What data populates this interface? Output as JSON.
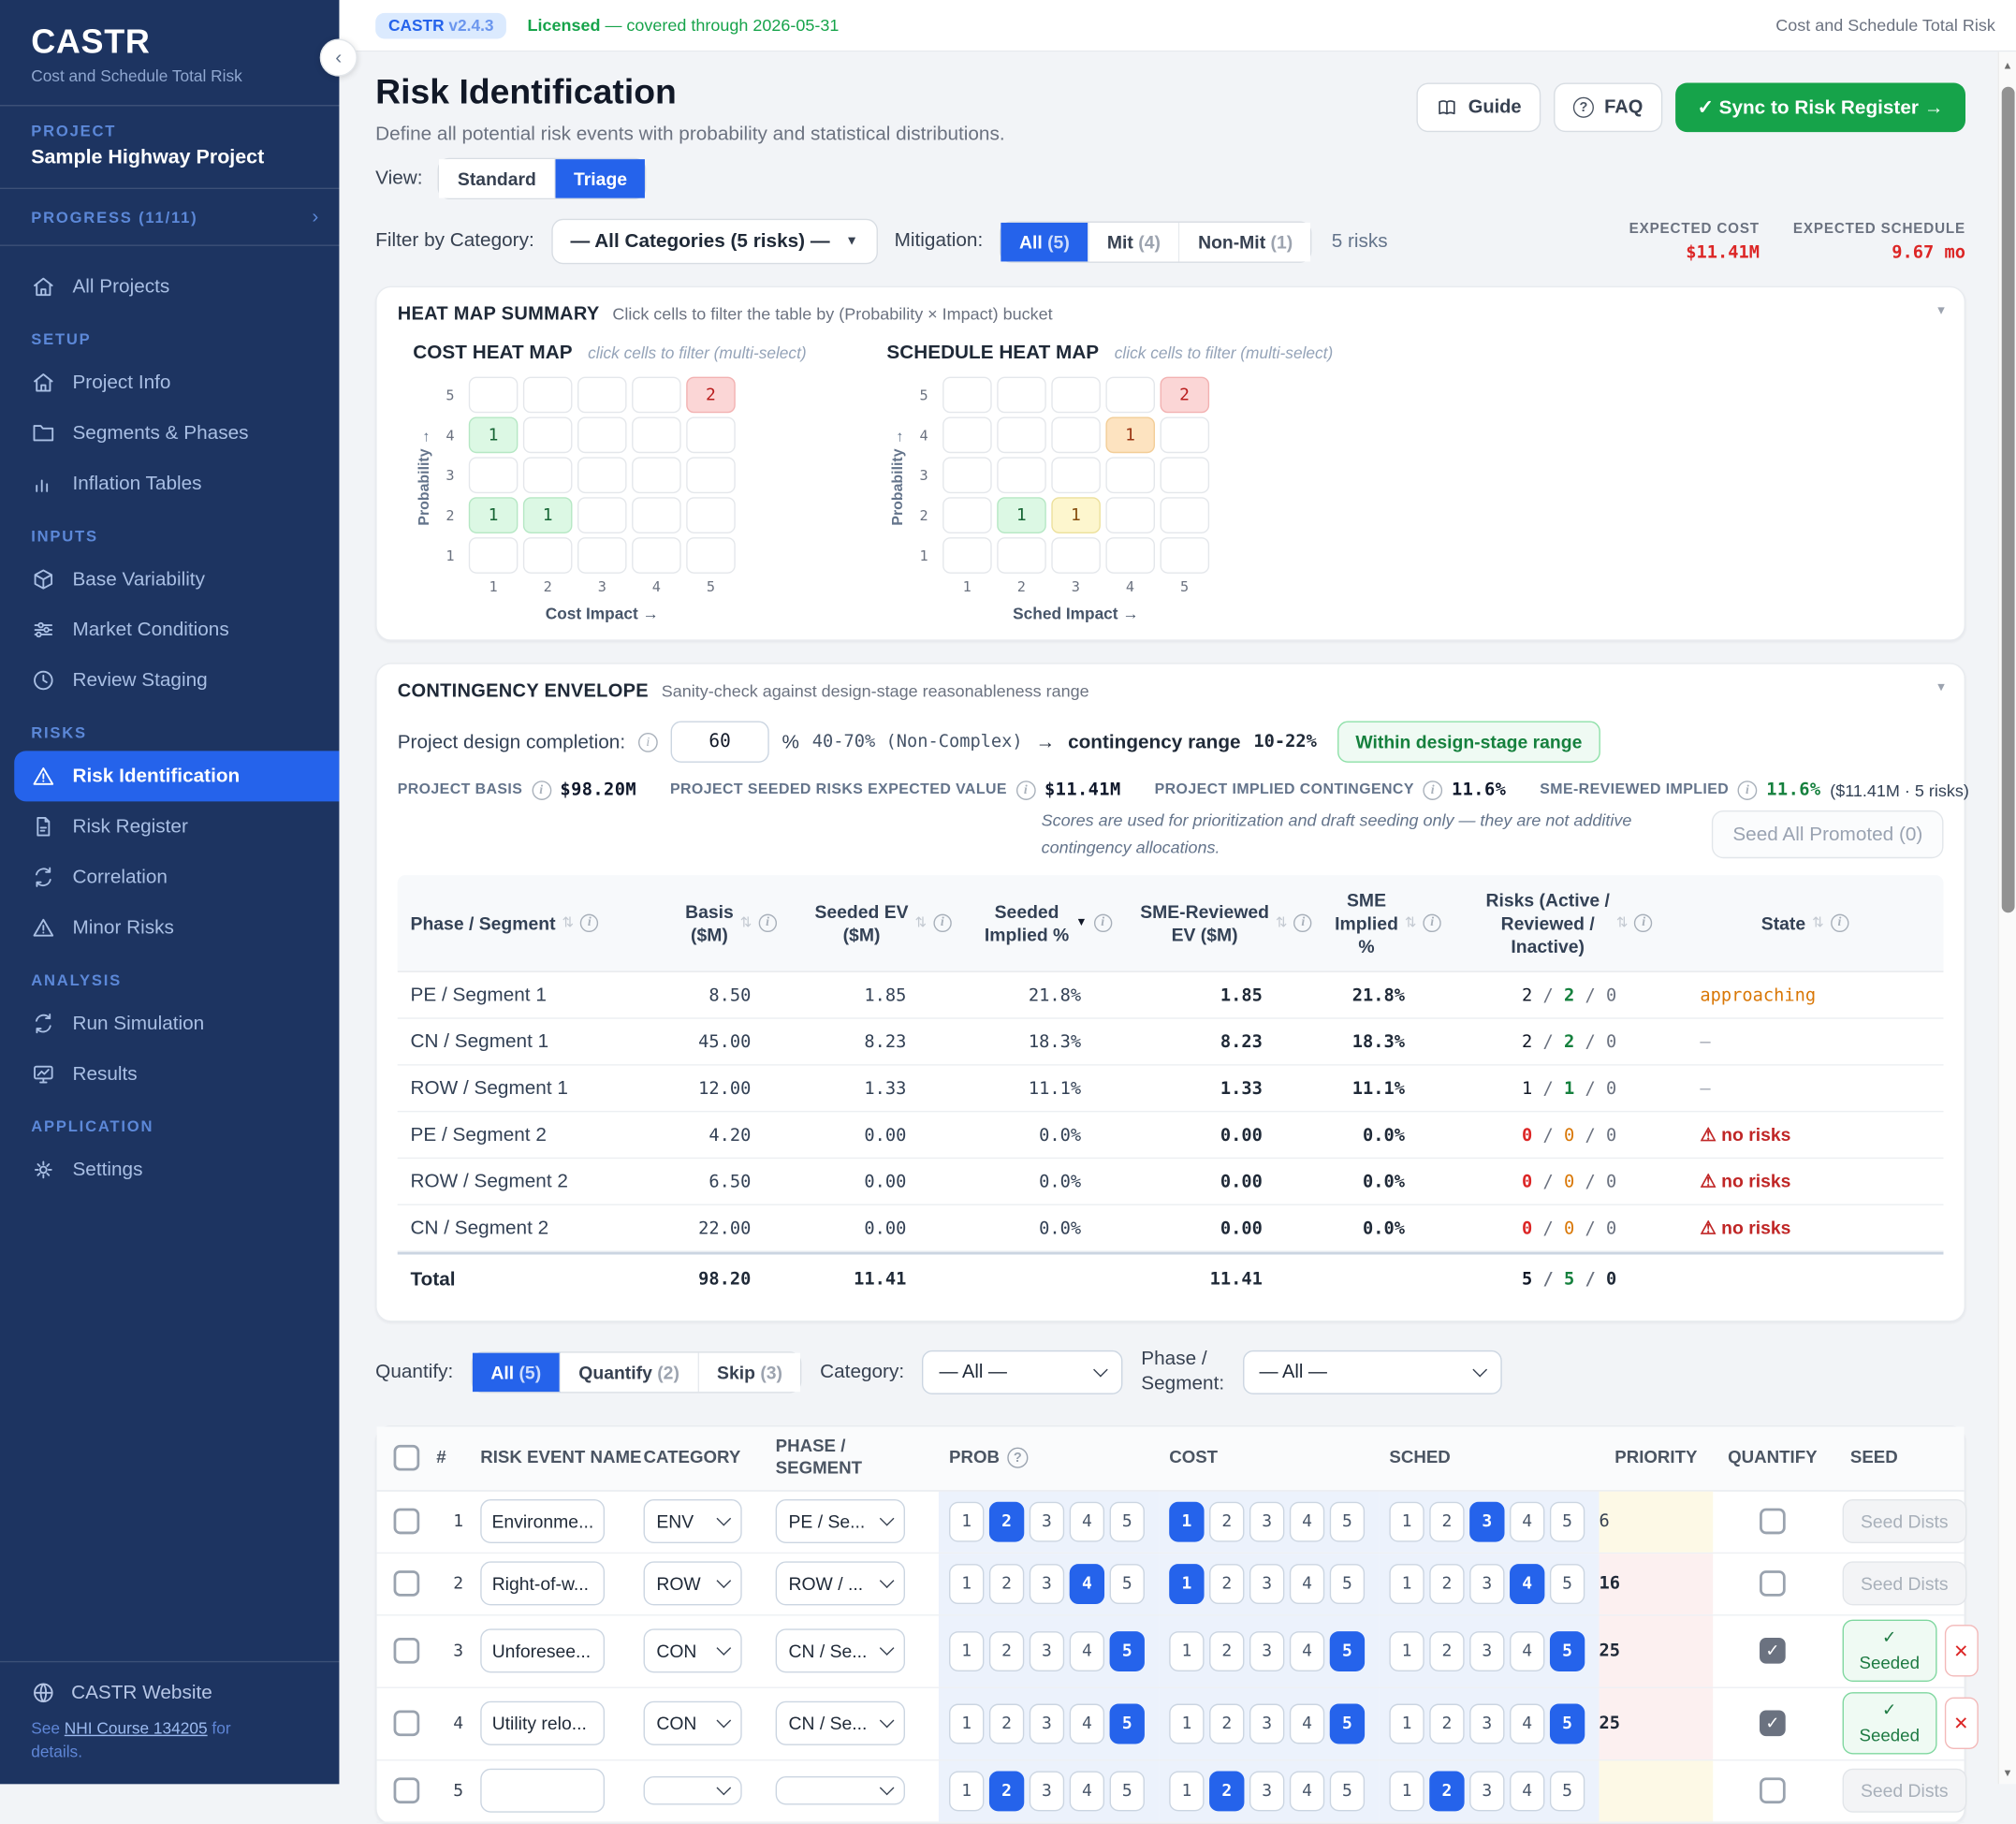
{
  "glyphs": {
    "caret_down": "▾",
    "chevron_left": "‹",
    "chevron_right": "›",
    "check": "✓",
    "x": "✕",
    "sort": "⇅",
    "sort_desc": "▼",
    "info": "i",
    "help": "?",
    "warning": "⚠",
    "dropdown_arrow": "▼",
    "scroll_up": "▲",
    "scroll_down": "▼"
  },
  "sidebar": {
    "logo": "CASTR",
    "tagline": "Cost and Schedule Total Risk",
    "project_label": "PROJECT",
    "project_name": "Sample Highway Project",
    "progress_label": "PROGRESS (11/11)",
    "sections": [
      {
        "label": "",
        "items": [
          {
            "icon": "home",
            "label": "All Projects",
            "active": false
          }
        ]
      },
      {
        "label": "SETUP",
        "items": [
          {
            "icon": "home",
            "label": "Project Info",
            "active": false
          },
          {
            "icon": "folder",
            "label": "Segments & Phases",
            "active": false
          },
          {
            "icon": "bars",
            "label": "Inflation Tables",
            "active": false
          }
        ]
      },
      {
        "label": "INPUTS",
        "items": [
          {
            "icon": "cube",
            "label": "Base Variability",
            "active": false
          },
          {
            "icon": "sliders",
            "label": "Market Conditions",
            "active": false
          },
          {
            "icon": "clock",
            "label": "Review Staging",
            "active": false
          }
        ]
      },
      {
        "label": "RISKS",
        "items": [
          {
            "icon": "warning",
            "label": "Risk Identification",
            "active": true
          },
          {
            "icon": "doc",
            "label": "Risk Register",
            "active": false
          },
          {
            "icon": "sync",
            "label": "Correlation",
            "active": false
          },
          {
            "icon": "warning",
            "label": "Minor Risks",
            "active": false
          }
        ]
      },
      {
        "label": "ANALYSIS",
        "items": [
          {
            "icon": "sync",
            "label": "Run Simulation",
            "active": false
          },
          {
            "icon": "monitor",
            "label": "Results",
            "active": false
          }
        ]
      },
      {
        "label": "APPLICATION",
        "items": [
          {
            "icon": "gear",
            "label": "Settings",
            "active": false
          }
        ]
      }
    ],
    "footer": {
      "website": "CASTR Website",
      "note_prefix": "See ",
      "note_link": "NHI Course 134205",
      "note_suffix": " for details."
    }
  },
  "topbar": {
    "badge_brand": "CASTR",
    "badge_version": "v2.4.3",
    "license_strong": "Licensed",
    "license_rest": " — covered through 2026-05-31",
    "right_title": "Cost and Schedule Total Risk"
  },
  "page": {
    "title": "Risk Identification",
    "subtitle": "Define all potential risk events with probability and statistical distributions.",
    "guide_label": "Guide",
    "faq_label": "FAQ",
    "sync_label": "✓ Sync to Risk Register →"
  },
  "view": {
    "label": "View:",
    "options": [
      {
        "label": "Standard",
        "active": false
      },
      {
        "label": "Triage",
        "active": true
      }
    ]
  },
  "filters": {
    "category_label": "Filter by Category:",
    "category_value": "— All Categories (5 risks) —",
    "mitigation_label": "Mitigation:",
    "mitigation_options": [
      {
        "label": "All",
        "count": "(5)",
        "active": true
      },
      {
        "label": "Mit",
        "count": "(4)",
        "active": false
      },
      {
        "label": "Non-Mit",
        "count": "(1)",
        "active": false
      }
    ],
    "summary": "5 risks",
    "stats": [
      {
        "label": "EXPECTED COST",
        "value": "$11.41M"
      },
      {
        "label": "EXPECTED SCHEDULE",
        "value": "9.67 mo"
      }
    ]
  },
  "heatmap": {
    "title": "HEAT MAP SUMMARY",
    "subtitle": "Click cells to filter the table by (Probability × Impact) bucket",
    "maps": [
      {
        "title": "COST HEAT MAP",
        "hint": "click cells to filter (multi-select)",
        "ylabel": "Probability →",
        "xlabel": "Cost Impact →",
        "cells": [
          {
            "prob": 5,
            "impact": 5,
            "count": "2",
            "tone": "red"
          },
          {
            "prob": 4,
            "impact": 1,
            "count": "1",
            "tone": "green"
          },
          {
            "prob": 2,
            "impact": 1,
            "count": "1",
            "tone": "green"
          },
          {
            "prob": 2,
            "impact": 2,
            "count": "1",
            "tone": "green"
          }
        ]
      },
      {
        "title": "SCHEDULE HEAT MAP",
        "hint": "click cells to filter (multi-select)",
        "ylabel": "Probability →",
        "xlabel": "Sched Impact →",
        "cells": [
          {
            "prob": 5,
            "impact": 5,
            "count": "2",
            "tone": "red"
          },
          {
            "prob": 4,
            "impact": 4,
            "count": "1",
            "tone": "orange"
          },
          {
            "prob": 2,
            "impact": 2,
            "count": "1",
            "tone": "green"
          },
          {
            "prob": 2,
            "impact": 3,
            "count": "1",
            "tone": "yellow"
          }
        ]
      }
    ]
  },
  "contingency": {
    "title": "CONTINGENCY ENVELOPE",
    "subtitle": "Sanity-check against design-stage reasonableness range",
    "completion_label": "Project design completion:",
    "completion_value": "60",
    "completion_unit": "%",
    "range_pre": "40-70% (Non-Complex)",
    "range_arrow": "→",
    "range_label": "contingency range",
    "range_value": "10-22%",
    "badge": "Within design-stage range",
    "stats": [
      {
        "label": "PROJECT BASIS",
        "value": "$98.20M",
        "green": false,
        "suffix": ""
      },
      {
        "label": "PROJECT SEEDED RISKS EXPECTED VALUE",
        "value": "$11.41M",
        "green": false,
        "suffix": ""
      },
      {
        "label": "PROJECT IMPLIED CONTINGENCY",
        "value": "11.6%",
        "green": false,
        "suffix": ""
      },
      {
        "label": "SME-REVIEWED IMPLIED",
        "value": "11.6%",
        "green": true,
        "suffix": "($11.41M · 5 risks)"
      }
    ],
    "note": "Scores are used for prioritization and draft seeding only — they are not additive contingency allocations.",
    "seed_all_label": "Seed All Promoted (0)",
    "table": {
      "headers": [
        {
          "label": "Phase / Segment",
          "sort": "updown"
        },
        {
          "label": "Basis\n($M)",
          "sort": "updown"
        },
        {
          "label": "Seeded EV\n($M)",
          "sort": "updown"
        },
        {
          "label": "Seeded\nImplied %",
          "sort": "desc"
        },
        {
          "label": "SME-Reviewed\nEV ($M)",
          "sort": "updown"
        },
        {
          "label": "SME\nImplied\n%",
          "sort": "updown"
        },
        {
          "label": "Risks (Active /\nReviewed /\nInactive)",
          "sort": "updown"
        },
        {
          "label": "State",
          "sort": "updown"
        }
      ],
      "rows": [
        {
          "segment": "PE / Segment 1",
          "basis": "8.50",
          "seeded_ev": "1.85",
          "seeded_implied": "21.8%",
          "sme_ev": "1.85",
          "sme_implied": "21.8%",
          "active": "2",
          "reviewed": "2",
          "inactive": "0",
          "state": "approaching",
          "state_type": "approaching"
        },
        {
          "segment": "CN / Segment 1",
          "basis": "45.00",
          "seeded_ev": "8.23",
          "seeded_implied": "18.3%",
          "sme_ev": "8.23",
          "sme_implied": "18.3%",
          "active": "2",
          "reviewed": "2",
          "inactive": "0",
          "state": "—",
          "state_type": "none"
        },
        {
          "segment": "ROW / Segment 1",
          "basis": "12.00",
          "seeded_ev": "1.33",
          "seeded_implied": "11.1%",
          "sme_ev": "1.33",
          "sme_implied": "11.1%",
          "active": "1",
          "reviewed": "1",
          "inactive": "0",
          "state": "—",
          "state_type": "none"
        },
        {
          "segment": "PE / Segment 2",
          "basis": "4.20",
          "seeded_ev": "0.00",
          "seeded_implied": "0.0%",
          "sme_ev": "0.00",
          "sme_implied": "0.0%",
          "active": "0",
          "reviewed": "0",
          "inactive": "0",
          "state": "⚠ no risks",
          "state_type": "norisks"
        },
        {
          "segment": "ROW / Segment 2",
          "basis": "6.50",
          "seeded_ev": "0.00",
          "seeded_implied": "0.0%",
          "sme_ev": "0.00",
          "sme_implied": "0.0%",
          "active": "0",
          "reviewed": "0",
          "inactive": "0",
          "state": "⚠ no risks",
          "state_type": "norisks"
        },
        {
          "segment": "CN / Segment 2",
          "basis": "22.00",
          "seeded_ev": "0.00",
          "seeded_implied": "0.0%",
          "sme_ev": "0.00",
          "sme_implied": "0.0%",
          "active": "0",
          "reviewed": "0",
          "inactive": "0",
          "state": "⚠ no risks",
          "state_type": "norisks"
        }
      ],
      "total": {
        "label": "Total",
        "basis": "98.20",
        "seeded_ev": "11.41",
        "sme_ev": "11.41",
        "active": "5",
        "reviewed": "5",
        "inactive": "0"
      }
    }
  },
  "quantify": {
    "label": "Quantify:",
    "options": [
      {
        "label": "All",
        "count": "(5)",
        "active": true
      },
      {
        "label": "Quantify",
        "count": "(2)",
        "active": false
      },
      {
        "label": "Skip",
        "count": "(3)",
        "active": false
      }
    ],
    "category_label": "Category:",
    "category_value": "— All —",
    "phase_label": "Phase /\nSegment:",
    "phase_value": "— All —"
  },
  "risk_table": {
    "headers": {
      "num": "#",
      "name": "RISK EVENT NAME",
      "category": "CATEGORY",
      "phase": "PHASE /\nSEGMENT",
      "prob": "PROB",
      "cost": "COST",
      "sched": "SCHED",
      "priority": "PRIORITY",
      "quantify": "QUANTIFY",
      "seed": "SEED"
    },
    "seed_dists_label": "Seed Dists",
    "seeded_check": "✓",
    "seeded_label": "Seeded",
    "rows": [
      {
        "num": "1",
        "name": "Environme...",
        "category": "ENV",
        "phase": "PE / Se...",
        "prob": 2,
        "cost": 1,
        "sched": 3,
        "priority": "6",
        "priority_tone": "yellow",
        "priority_bold": false,
        "quantified": false,
        "seed": "dists"
      },
      {
        "num": "2",
        "name": "Right-of-w...",
        "category": "ROW",
        "phase": "ROW / ...",
        "prob": 4,
        "cost": 1,
        "sched": 4,
        "priority": "16",
        "priority_tone": "pink",
        "priority_bold": true,
        "quantified": false,
        "seed": "dists"
      },
      {
        "num": "3",
        "name": "Unforesee...",
        "category": "CON",
        "phase": "CN / Se...",
        "prob": 5,
        "cost": 5,
        "sched": 5,
        "priority": "25",
        "priority_tone": "pink",
        "priority_bold": true,
        "quantified": true,
        "seed": "seeded"
      },
      {
        "num": "4",
        "name": "Utility relo...",
        "category": "CON",
        "phase": "CN / Se...",
        "prob": 5,
        "cost": 5,
        "sched": 5,
        "priority": "25",
        "priority_tone": "pink",
        "priority_bold": true,
        "quantified": true,
        "seed": "seeded"
      },
      {
        "num": "5",
        "name": "",
        "category": "",
        "phase": "",
        "prob": 2,
        "cost": 2,
        "sched": 2,
        "priority": "",
        "priority_tone": "yellow",
        "priority_bold": false,
        "quantified": false,
        "seed": "dists"
      }
    ]
  }
}
